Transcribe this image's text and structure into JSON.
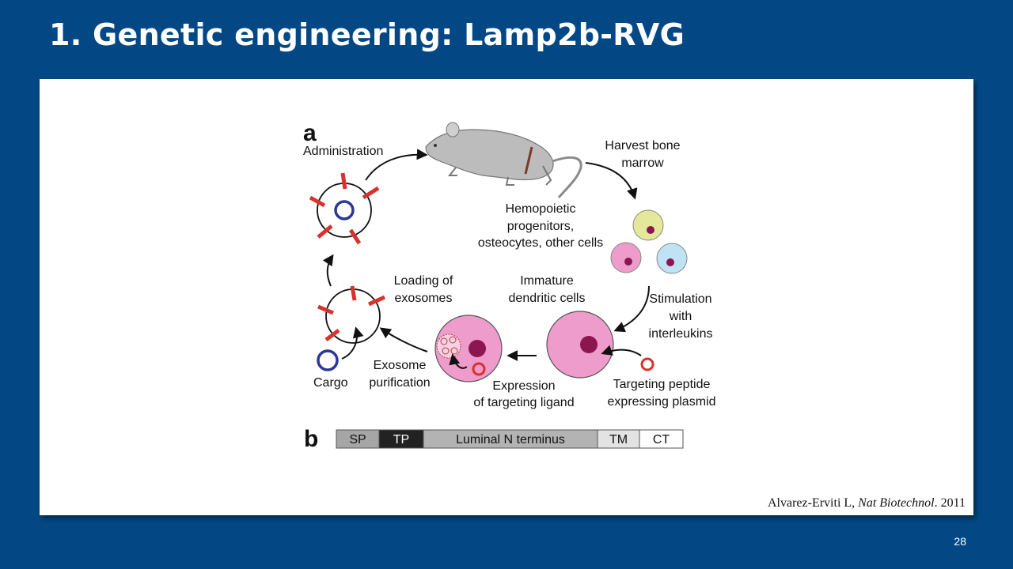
{
  "slide": {
    "title": "1. Genetic engineering: Lamp2b-RVG",
    "page_number": "28"
  },
  "citation": {
    "authors": "Alvarez-Erviti  L, ",
    "journal": "Nat Biotechnol",
    "year": ". 2011"
  },
  "figure": {
    "panel_a_letter": "a",
    "panel_b_letter": "b",
    "labels": {
      "administration": "Administration",
      "harvest_1": "Harvest bone",
      "harvest_2": "marrow",
      "hemo_1": "Hemopoietic",
      "hemo_2": "progenitors,",
      "hemo_3": "osteocytes, other cells",
      "loading_1": "Loading of",
      "loading_2": "exosomes",
      "immature_1": "Immature",
      "immature_2": "dendritic cells",
      "stim_1": "Stimulation",
      "stim_2": "with",
      "stim_3": "interleukins",
      "exosome_1": "Exosome",
      "exosome_2": "purification",
      "cargo": "Cargo",
      "expression_1": "Expression",
      "expression_2": "of targeting ligand",
      "targeting_1": "Targeting peptide",
      "targeting_2": "expressing plasmid"
    },
    "construct_segments": [
      {
        "label": "SP",
        "fill": "#a6a6a6",
        "text_color": "#111111"
      },
      {
        "label": "TP",
        "fill": "#222222",
        "text_color": "#ffffff"
      },
      {
        "label": "Luminal N terminus",
        "fill": "#b3b3b3",
        "text_color": "#111111"
      },
      {
        "label": "TM",
        "fill": "#e3e3e3",
        "text_color": "#111111"
      },
      {
        "label": "CT",
        "fill": "#ffffff",
        "text_color": "#111111"
      }
    ],
    "colors": {
      "ligand_red": "#d9322c",
      "cargo_blue": "#2b3990",
      "cell_pink": "#ee9ccb",
      "cell_yellow": "#e3e89a",
      "cell_blue": "#bfe3f5",
      "nucleus": "#8b1650",
      "mouse_grey": "#bcbcbc"
    }
  }
}
